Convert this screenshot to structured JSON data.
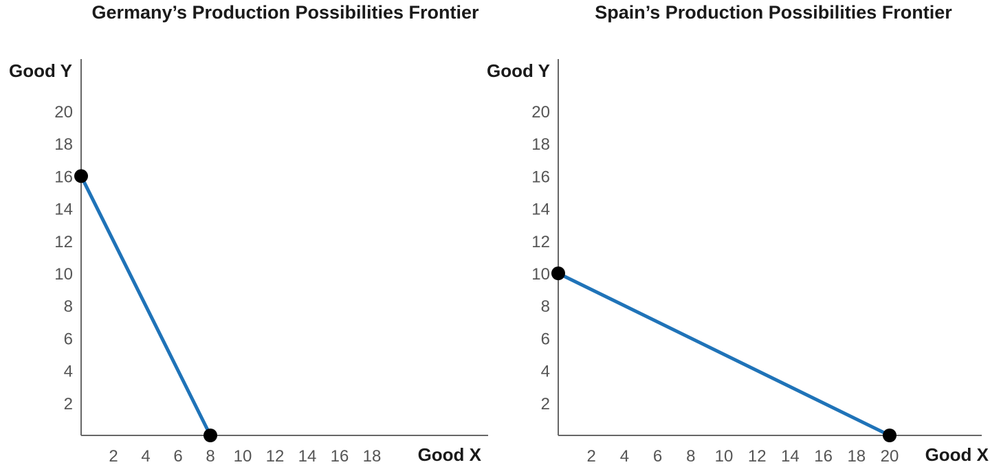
{
  "chart_data": [
    {
      "type": "line",
      "title": "Germany’s Production Possibilities Frontier",
      "xlabel": "Good X",
      "ylabel": "Good Y",
      "xlim": [
        0,
        20
      ],
      "ylim": [
        0,
        22
      ],
      "xticks": [
        2,
        4,
        6,
        8,
        10,
        12,
        14,
        16,
        18
      ],
      "yticks": [
        2,
        4,
        6,
        8,
        10,
        12,
        14,
        16,
        18,
        20
      ],
      "series": [
        {
          "points": [
            {
              "x": 0,
              "y": 16
            },
            {
              "x": 8,
              "y": 0
            }
          ]
        }
      ],
      "grid": false,
      "line_color": "#1f73b8",
      "marker_color": "#000000"
    },
    {
      "type": "line",
      "title": "Spain’s Production Possibilities Frontier",
      "xlabel": "Good X",
      "ylabel": "Good Y",
      "xlim": [
        0,
        20
      ],
      "ylim": [
        0,
        22
      ],
      "xticks": [
        2,
        4,
        6,
        8,
        10,
        12,
        14,
        16,
        18,
        20
      ],
      "yticks": [
        2,
        4,
        6,
        8,
        10,
        12,
        14,
        16,
        18,
        20
      ],
      "series": [
        {
          "points": [
            {
              "x": 0,
              "y": 10
            },
            {
              "x": 20,
              "y": 0
            }
          ]
        }
      ],
      "grid": false,
      "line_color": "#1f73b8",
      "marker_color": "#000000"
    }
  ]
}
